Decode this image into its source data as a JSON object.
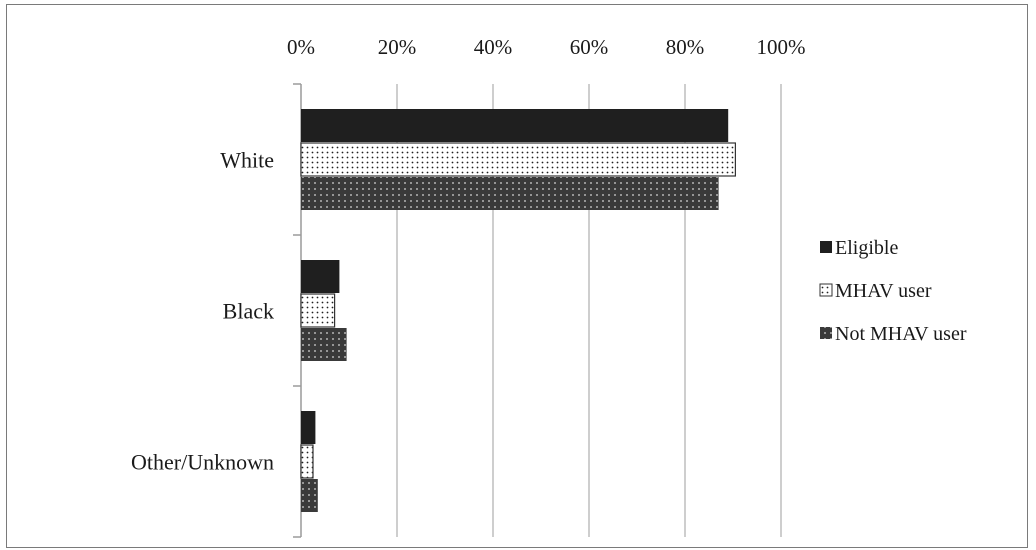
{
  "chart_data": {
    "type": "bar",
    "orientation": "horizontal",
    "categories": [
      "White",
      "Black",
      "Other/Unknown"
    ],
    "series": [
      {
        "name": "Eligible",
        "values": [
          89,
          8,
          3
        ],
        "color": "#1f1f1f",
        "pattern": "solid"
      },
      {
        "name": "MHAV user",
        "values": [
          90.5,
          7,
          2.5
        ],
        "color": "#ffffff",
        "pattern": "light-dots"
      },
      {
        "name": "Not MHAV user",
        "values": [
          87,
          9.5,
          3.5
        ],
        "color": "#3a3a3a",
        "pattern": "dark-dots"
      }
    ],
    "xlim": [
      0,
      100
    ],
    "x_ticks": [
      "0%",
      "20%",
      "40%",
      "60%",
      "80%",
      "100%"
    ],
    "x_axis_position": "top",
    "grid": true,
    "legend_placement": "right",
    "title": "",
    "xlabel": "",
    "ylabel": ""
  }
}
